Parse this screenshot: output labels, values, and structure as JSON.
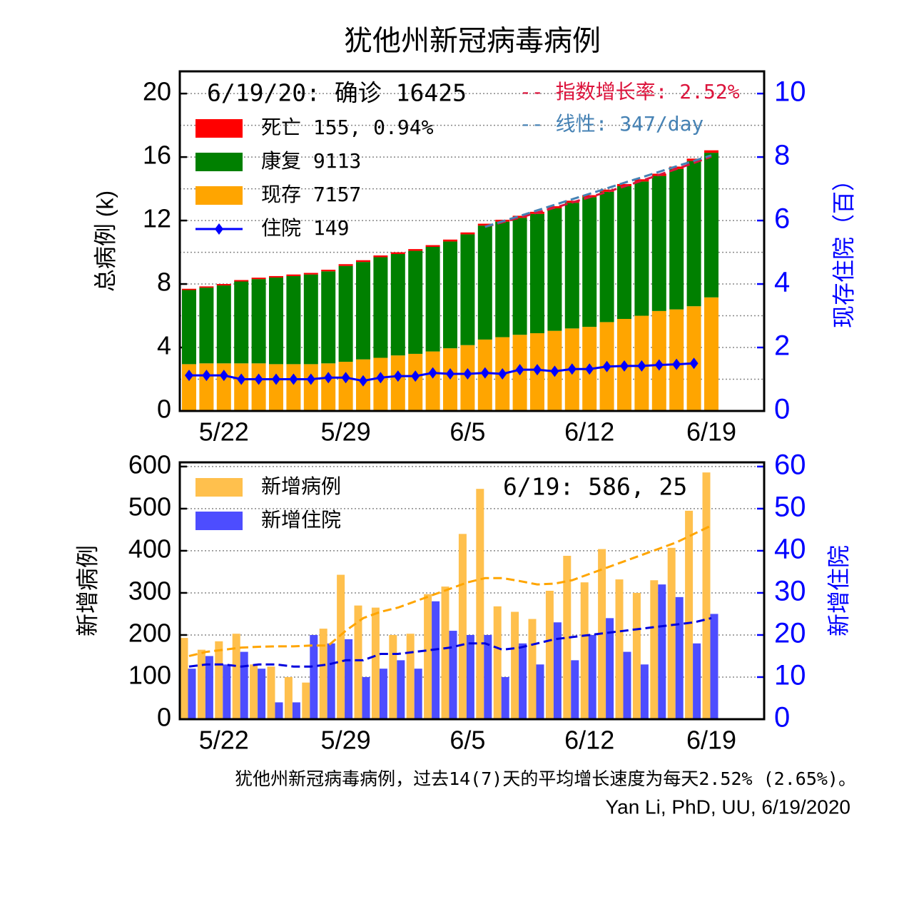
{
  "title": "犹他州新冠病毒病例",
  "footer": [
    "犹他州新冠病毒病例，过去14(7)天的平均增长速度为每天2.52% (2.65%)。",
    "Yan Li, PhD, UU, 6/19/2020"
  ],
  "chart_data": [
    {
      "type": "bar",
      "stacked": true,
      "header": "6/19/20: 确诊 16425",
      "ylabel": "总病例 (k)",
      "y2label": "现存住院（百）",
      "categories": [
        null,
        null,
        "5/22",
        null,
        null,
        null,
        null,
        null,
        null,
        "5/29",
        null,
        null,
        null,
        null,
        null,
        null,
        "6/5",
        null,
        null,
        null,
        null,
        null,
        null,
        "6/12",
        null,
        null,
        null,
        null,
        null,
        null,
        "6/19"
      ],
      "ylim": [
        0,
        21.4
      ],
      "yticks": [
        0,
        4,
        8,
        12,
        16,
        20
      ],
      "y2lim": [
        0,
        10.7
      ],
      "y2ticks": [
        0,
        2,
        4,
        6,
        8,
        10
      ],
      "y2color": "#0000ff",
      "grid": true,
      "series": [
        {
          "name": "死亡 155, 0.94%",
          "kind": "bar",
          "color": "#ff0000",
          "values": [
            0.08,
            0.08,
            0.09,
            0.09,
            0.09,
            0.09,
            0.1,
            0.1,
            0.1,
            0.11,
            0.11,
            0.11,
            0.11,
            0.11,
            0.11,
            0.12,
            0.12,
            0.12,
            0.12,
            0.13,
            0.13,
            0.13,
            0.13,
            0.13,
            0.14,
            0.14,
            0.14,
            0.14,
            0.15,
            0.15,
            0.155
          ]
        },
        {
          "name": "康复 9113",
          "kind": "bar",
          "color": "#008000",
          "values": [
            4.67,
            4.77,
            4.91,
            5.16,
            5.31,
            5.46,
            5.55,
            5.65,
            5.8,
            6.04,
            6.14,
            6.34,
            6.39,
            6.49,
            6.59,
            6.73,
            6.98,
            7.18,
            7.28,
            7.37,
            7.52,
            7.72,
            7.92,
            8.17,
            8.21,
            8.36,
            8.46,
            8.51,
            8.85,
            9.15,
            9.113
          ]
        },
        {
          "name": "现存 7157",
          "kind": "bar",
          "color": "#ffa500",
          "values": [
            2.95,
            3.0,
            3.0,
            3.0,
            3.0,
            2.95,
            2.95,
            2.95,
            3.0,
            3.1,
            3.25,
            3.35,
            3.5,
            3.6,
            3.75,
            3.95,
            4.15,
            4.5,
            4.65,
            4.8,
            4.9,
            5.05,
            5.2,
            5.3,
            5.6,
            5.8,
            6.0,
            6.3,
            6.4,
            6.6,
            7.157
          ]
        },
        {
          "name": "住院 149",
          "kind": "marker-line",
          "color": "#0000ff",
          "axis": "y2",
          "values": [
            1.12,
            1.12,
            1.12,
            1.0,
            1.0,
            1.0,
            1.0,
            1.0,
            1.05,
            1.05,
            0.95,
            1.05,
            1.1,
            1.1,
            1.2,
            1.17,
            1.17,
            1.2,
            1.17,
            1.3,
            1.3,
            1.25,
            1.32,
            1.32,
            1.4,
            1.42,
            1.42,
            1.45,
            1.47,
            1.5,
            null
          ]
        },
        {
          "name": "-- 指数增长率: 2.52%",
          "kind": "dashed",
          "color": "#dc143c",
          "values": [
            null,
            null,
            null,
            null,
            null,
            null,
            null,
            null,
            null,
            null,
            null,
            null,
            null,
            null,
            null,
            null,
            null,
            11.6,
            11.89,
            12.19,
            12.5,
            12.81,
            13.13,
            13.47,
            13.8,
            14.15,
            14.51,
            14.88,
            15.25,
            15.63,
            16.03
          ]
        },
        {
          "name": "-- 线性: 347/day",
          "kind": "dashed",
          "color": "#4682b4",
          "values": [
            null,
            null,
            null,
            null,
            null,
            null,
            null,
            null,
            null,
            null,
            null,
            null,
            null,
            null,
            null,
            null,
            null,
            11.6,
            11.95,
            12.29,
            12.64,
            12.99,
            13.34,
            13.68,
            14.03,
            14.38,
            14.72,
            15.07,
            15.42,
            15.76,
            16.11
          ]
        }
      ]
    },
    {
      "type": "bar",
      "stacked": false,
      "annotation": "6/19: 586, 25",
      "ylabel": "新增病例",
      "y2label": "新增住院",
      "categories": [
        null,
        null,
        "5/22",
        null,
        null,
        null,
        null,
        null,
        null,
        "5/29",
        null,
        null,
        null,
        null,
        null,
        null,
        "6/5",
        null,
        null,
        null,
        null,
        null,
        null,
        "6/12",
        null,
        null,
        null,
        null,
        null,
        null,
        "6/19"
      ],
      "ylim": [
        0,
        610
      ],
      "yticks": [
        0,
        100,
        200,
        300,
        400,
        500,
        600
      ],
      "y2lim": [
        0,
        61
      ],
      "y2ticks": [
        0,
        10,
        20,
        30,
        40,
        50,
        60
      ],
      "y2color": "#0000ff",
      "grid": true,
      "series": [
        {
          "name": "新增病例",
          "kind": "bar",
          "color": "#ffc04d",
          "values": [
            193,
            165,
            185,
            203,
            130,
            125,
            100,
            87,
            215,
            343,
            270,
            265,
            200,
            203,
            297,
            315,
            440,
            547,
            268,
            255,
            238,
            305,
            388,
            325,
            404,
            332,
            300,
            330,
            407,
            495,
            586
          ]
        },
        {
          "name": "新增住院",
          "kind": "bar",
          "color": "#4d4dff",
          "axis": "y2",
          "values": [
            12,
            15,
            13,
            16,
            12,
            4,
            4,
            20,
            18,
            19,
            10,
            12,
            14,
            12,
            28,
            21,
            20,
            20,
            10,
            18,
            13,
            23,
            14,
            20,
            24,
            16,
            13,
            32,
            29,
            18,
            25
          ]
        },
        {
          "kind": "dashed",
          "color": "#ffa500",
          "values": [
            150,
            160,
            165,
            170,
            172,
            173,
            173,
            175,
            175,
            210,
            240,
            255,
            265,
            280,
            295,
            310,
            325,
            335,
            335,
            328,
            320,
            322,
            330,
            345,
            360,
            375,
            390,
            405,
            420,
            440,
            460
          ]
        },
        {
          "kind": "dashed",
          "color": "#0000dd",
          "axis": "y2",
          "values": [
            12.5,
            13,
            13,
            12.5,
            13,
            13,
            12.5,
            12.5,
            13,
            14,
            14,
            15.5,
            15.5,
            16,
            16.5,
            17,
            18,
            18,
            16.5,
            17,
            18,
            19,
            19.5,
            20,
            20.5,
            21,
            21.5,
            22,
            22.5,
            23,
            24
          ]
        }
      ]
    }
  ]
}
